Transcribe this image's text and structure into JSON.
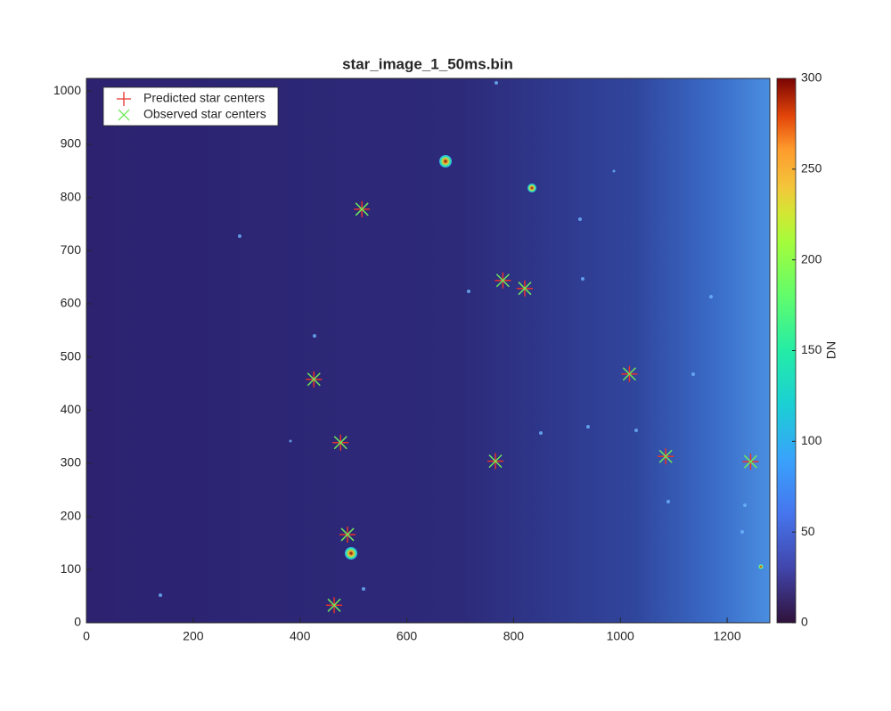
{
  "chart_data": {
    "type": "scatter",
    "title": "star_image_1_50ms.bin",
    "xlim": [
      0,
      1280
    ],
    "ylim": [
      0,
      1024
    ],
    "xticks": [
      0,
      200,
      400,
      600,
      800,
      1000,
      1200
    ],
    "yticks": [
      0,
      100,
      200,
      300,
      400,
      500,
      600,
      700,
      800,
      900,
      1000
    ],
    "legend": "upper left",
    "series": [
      {
        "name": "Predicted star centers",
        "color": "#e8322c",
        "marker": "+",
        "x": [
          516,
          780,
          821,
          426,
          1017,
          476,
          766,
          1085,
          1244,
          489,
          464
        ],
        "values": [
          778,
          644,
          629,
          458,
          468,
          339,
          304,
          313,
          303,
          166,
          33
        ]
      },
      {
        "name": "Observed star centers",
        "color": "#6ee85a",
        "marker": "x",
        "x": [
          516,
          780,
          821,
          426,
          1017,
          476,
          766,
          1085,
          1244,
          489,
          464
        ],
        "values": [
          778,
          644,
          629,
          458,
          468,
          339,
          304,
          313,
          303,
          166,
          33
        ]
      }
    ],
    "colorbar": {
      "label": "DN",
      "lim": [
        0,
        300
      ],
      "ticks": [
        0,
        50,
        100,
        150,
        200,
        250,
        300
      ]
    }
  }
}
